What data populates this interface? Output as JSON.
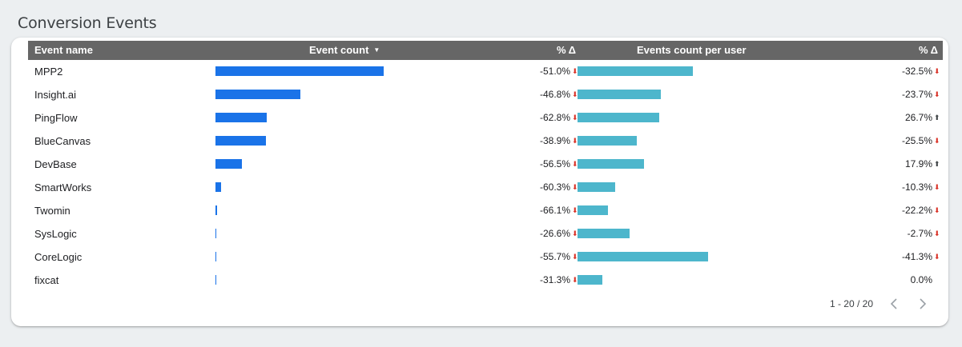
{
  "panel": {
    "title": "Conversion Events"
  },
  "table": {
    "headers": {
      "event_name": "Event name",
      "event_count": "Event count",
      "sort_indicator": "▼",
      "delta1": "% Δ",
      "events_per_user": "Events count per user",
      "delta2": "% Δ"
    },
    "colors": {
      "count_bar": "#1a73e8",
      "epu_bar": "#4db6cc",
      "down": "#d93025",
      "up": "#3c4043"
    },
    "rows": [
      {
        "name": "MPP2",
        "count_frac": 0.913,
        "delta1": "-51.0%",
        "d1_dir": "down",
        "epu_frac": 0.48,
        "delta2": "-32.5%",
        "d2_dir": "down"
      },
      {
        "name": "Insight.ai",
        "count_frac": 0.46,
        "delta1": "-46.8%",
        "d1_dir": "down",
        "epu_frac": 0.347,
        "delta2": "-23.7%",
        "d2_dir": "down"
      },
      {
        "name": "PingFlow",
        "count_frac": 0.278,
        "delta1": "-62.8%",
        "d1_dir": "down",
        "epu_frac": 0.34,
        "delta2": "26.7%",
        "d2_dir": "up"
      },
      {
        "name": "BlueCanvas",
        "count_frac": 0.274,
        "delta1": "-38.9%",
        "d1_dir": "down",
        "epu_frac": 0.247,
        "delta2": "-25.5%",
        "d2_dir": "down"
      },
      {
        "name": "DevBase",
        "count_frac": 0.143,
        "delta1": "-56.5%",
        "d1_dir": "down",
        "epu_frac": 0.277,
        "delta2": "17.9%",
        "d2_dir": "up"
      },
      {
        "name": "SmartWorks",
        "count_frac": 0.03,
        "delta1": "-60.3%",
        "d1_dir": "down",
        "epu_frac": 0.157,
        "delta2": "-10.3%",
        "d2_dir": "down"
      },
      {
        "name": "Twomin",
        "count_frac": 0.009,
        "delta1": "-66.1%",
        "d1_dir": "down",
        "epu_frac": 0.127,
        "delta2": "-22.2%",
        "d2_dir": "down"
      },
      {
        "name": "SysLogic",
        "count_frac": 0.005,
        "delta1": "-26.6%",
        "d1_dir": "down",
        "epu_frac": 0.217,
        "delta2": "-2.7%",
        "d2_dir": "down"
      },
      {
        "name": "CoreLogic",
        "count_frac": 0.005,
        "delta1": "-55.7%",
        "d1_dir": "down",
        "epu_frac": 0.543,
        "delta2": "-41.3%",
        "d2_dir": "down"
      },
      {
        "name": "fixcat",
        "count_frac": 0.005,
        "delta1": "-31.3%",
        "d1_dir": "down",
        "epu_frac": 0.103,
        "delta2": "0.0%",
        "d2_dir": "none"
      }
    ]
  },
  "pagination": {
    "range": "1 - 20 / 20",
    "prev_icon": "chevron-left-icon",
    "next_icon": "chevron-right-icon"
  }
}
